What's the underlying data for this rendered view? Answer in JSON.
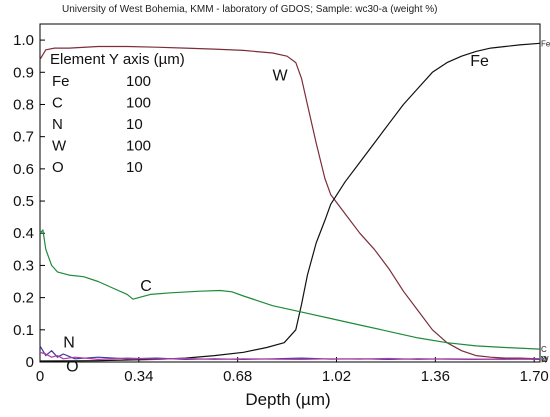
{
  "chart_data": {
    "type": "line",
    "header": "University of West Bohemia, KMM - laboratory of GDOS;  Sample: wc30-a (weight %)",
    "xlabel": "Depth (µm)",
    "xlim": [
      0,
      1.72
    ],
    "ylim": [
      0,
      1.05
    ],
    "x_ticks": [
      "0",
      "0.34",
      "0.68",
      "1.02",
      "1.36",
      "1.70"
    ],
    "x_tick_values": [
      0,
      0.34,
      0.68,
      1.02,
      1.36,
      1.7
    ],
    "y_ticks": [
      "0",
      "0.1",
      "0.2",
      "0.3",
      "0.4",
      "0.5",
      "0.6",
      "0.7",
      "0.8",
      "0.9",
      "1.0"
    ],
    "y_tick_values": [
      0,
      0.1,
      0.2,
      0.3,
      0.4,
      0.5,
      0.6,
      0.7,
      0.8,
      0.9,
      1.0
    ],
    "grid": false,
    "legend_table": {
      "title": "Element Y axis (µm)",
      "rows": [
        {
          "element": "Fe",
          "value": "100"
        },
        {
          "element": "C",
          "value": "100"
        },
        {
          "element": "N",
          "value": "10"
        },
        {
          "element": "W",
          "value": "100"
        },
        {
          "element": "O",
          "value": "10"
        }
      ]
    },
    "series": [
      {
        "name": "W",
        "color": "#7a2e3a",
        "edge_label": "W",
        "x": [
          0,
          0.02,
          0.05,
          0.1,
          0.2,
          0.3,
          0.4,
          0.5,
          0.6,
          0.7,
          0.8,
          0.85,
          0.88,
          0.9,
          0.92,
          0.95,
          0.98,
          1.0,
          1.05,
          1.1,
          1.15,
          1.2,
          1.25,
          1.3,
          1.35,
          1.4,
          1.45,
          1.5,
          1.55,
          1.6,
          1.65,
          1.72
        ],
        "y": [
          0.94,
          0.97,
          0.975,
          0.975,
          0.98,
          0.98,
          0.978,
          0.975,
          0.972,
          0.968,
          0.96,
          0.95,
          0.93,
          0.88,
          0.8,
          0.68,
          0.57,
          0.52,
          0.46,
          0.4,
          0.35,
          0.29,
          0.22,
          0.16,
          0.1,
          0.06,
          0.035,
          0.02,
          0.015,
          0.012,
          0.012,
          0.01
        ]
      },
      {
        "name": "Fe",
        "color": "#111111",
        "edge_label": "Fe",
        "x": [
          0,
          0.2,
          0.4,
          0.5,
          0.6,
          0.7,
          0.78,
          0.84,
          0.88,
          0.9,
          0.92,
          0.95,
          0.98,
          1.0,
          1.05,
          1.1,
          1.15,
          1.2,
          1.25,
          1.3,
          1.35,
          1.4,
          1.45,
          1.5,
          1.55,
          1.6,
          1.65,
          1.72
        ],
        "y": [
          0.003,
          0.004,
          0.008,
          0.012,
          0.02,
          0.03,
          0.045,
          0.06,
          0.1,
          0.18,
          0.27,
          0.37,
          0.44,
          0.49,
          0.56,
          0.62,
          0.68,
          0.74,
          0.8,
          0.85,
          0.9,
          0.93,
          0.95,
          0.965,
          0.975,
          0.98,
          0.985,
          0.99
        ]
      },
      {
        "name": "C",
        "color": "#1f8a3a",
        "edge_label": "C",
        "x": [
          0,
          0.01,
          0.02,
          0.04,
          0.06,
          0.1,
          0.15,
          0.2,
          0.25,
          0.3,
          0.32,
          0.34,
          0.38,
          0.45,
          0.55,
          0.62,
          0.66,
          0.7,
          0.75,
          0.8,
          0.9,
          1.0,
          1.1,
          1.2,
          1.3,
          1.4,
          1.5,
          1.6,
          1.72
        ],
        "y": [
          0.4,
          0.41,
          0.35,
          0.3,
          0.28,
          0.27,
          0.265,
          0.25,
          0.23,
          0.21,
          0.195,
          0.2,
          0.21,
          0.215,
          0.22,
          0.222,
          0.218,
          0.205,
          0.19,
          0.175,
          0.155,
          0.135,
          0.115,
          0.095,
          0.075,
          0.06,
          0.05,
          0.045,
          0.04
        ]
      },
      {
        "name": "N",
        "color": "#3a3aa0",
        "edge_label": "N",
        "x": [
          0,
          0.02,
          0.04,
          0.06,
          0.08,
          0.12,
          0.2,
          0.3,
          0.4,
          0.5,
          0.6,
          0.7,
          0.8,
          0.9,
          1.0,
          1.1,
          1.2,
          1.3,
          1.4,
          1.5,
          1.6,
          1.72
        ],
        "y": [
          0.05,
          0.02,
          0.035,
          0.015,
          0.025,
          0.01,
          0.015,
          0.01,
          0.012,
          0.008,
          0.01,
          0.008,
          0.01,
          0.012,
          0.009,
          0.01,
          0.008,
          0.01,
          0.009,
          0.008,
          0.01,
          0.008
        ]
      },
      {
        "name": "O",
        "color": "#b23aa6",
        "edge_label": "O",
        "x": [
          0,
          0.02,
          0.04,
          0.06,
          0.08,
          0.12,
          0.2,
          0.3,
          0.4,
          0.5,
          0.6,
          0.7,
          0.8,
          0.9,
          1.0,
          1.1,
          1.2,
          1.3,
          1.4,
          1.5,
          1.6,
          1.72
        ],
        "y": [
          0.03,
          0.025,
          0.015,
          0.02,
          0.01,
          0.015,
          0.008,
          0.012,
          0.009,
          0.011,
          0.008,
          0.01,
          0.009,
          0.008,
          0.01,
          0.009,
          0.011,
          0.008,
          0.01,
          0.009,
          0.008,
          0.01
        ]
      }
    ],
    "annotations": [
      {
        "text": "Fe",
        "x": 1.48,
        "y": 0.92
      },
      {
        "text": "W",
        "x": 0.8,
        "y": 0.875
      },
      {
        "text": "C",
        "x": 0.345,
        "y": 0.22
      },
      {
        "text": "N",
        "x": 0.08,
        "y": 0.045
      },
      {
        "text": "O",
        "x": 0.09,
        "y": -0.03
      }
    ]
  }
}
